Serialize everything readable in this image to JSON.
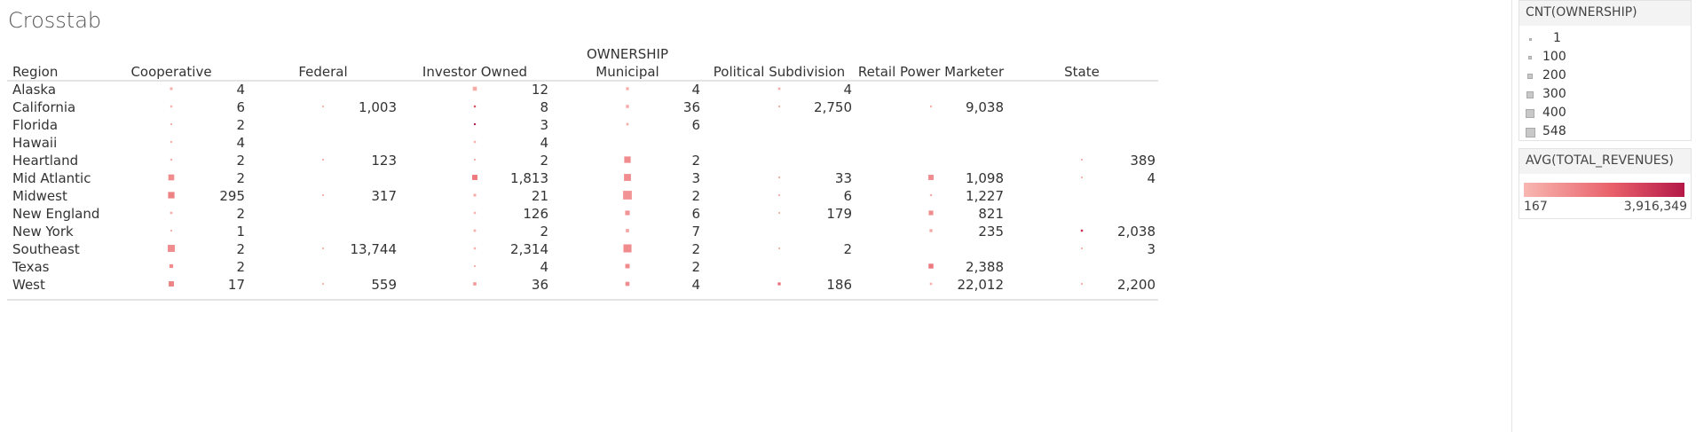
{
  "title": "Crosstab",
  "chart_data": {
    "type": "table",
    "column_group_header": "OWNERSHIP",
    "row_header": "Region",
    "columns": [
      "Cooperative",
      "Federal",
      "Investor Owned",
      "Municipal",
      "Political Subdivision",
      "Retail Power Marketer",
      "State"
    ],
    "rows": [
      {
        "region": "Alaska",
        "cells": [
          4,
          null,
          12,
          4,
          4,
          null,
          null
        ]
      },
      {
        "region": "California",
        "cells": [
          6,
          1003,
          8,
          36,
          2750,
          9038,
          null
        ]
      },
      {
        "region": "Florida",
        "cells": [
          2,
          null,
          3,
          6,
          null,
          null,
          null
        ]
      },
      {
        "region": "Hawaii",
        "cells": [
          4,
          null,
          4,
          null,
          null,
          null,
          null
        ]
      },
      {
        "region": "Heartland",
        "cells": [
          2,
          123,
          2,
          2,
          null,
          null,
          389
        ]
      },
      {
        "region": "Mid Atlantic",
        "cells": [
          2,
          null,
          1813,
          3,
          33,
          1098,
          4
        ]
      },
      {
        "region": "Midwest",
        "cells": [
          295,
          317,
          21,
          2,
          6,
          1227,
          null
        ]
      },
      {
        "region": "New England",
        "cells": [
          2,
          null,
          126,
          6,
          179,
          821,
          null
        ]
      },
      {
        "region": "New York",
        "cells": [
          1,
          null,
          2,
          7,
          null,
          235,
          2038
        ]
      },
      {
        "region": "Southeast",
        "cells": [
          2,
          13744,
          2314,
          2,
          2,
          null,
          3
        ]
      },
      {
        "region": "Texas",
        "cells": [
          2,
          null,
          4,
          2,
          null,
          2388,
          null
        ]
      },
      {
        "region": "West",
        "cells": [
          17,
          559,
          36,
          4,
          186,
          22012,
          2200
        ]
      }
    ],
    "marks": [
      [
        [
          50,
          0.05
        ],
        null,
        [
          120,
          0.06
        ],
        [
          60,
          0.05
        ],
        [
          40,
          0.05
        ],
        null,
        null
      ],
      [
        [
          30,
          0.05
        ],
        [
          20,
          0.02
        ],
        [
          30,
          0.6
        ],
        [
          70,
          0.07
        ],
        [
          20,
          0.05
        ],
        [
          25,
          0.06
        ],
        null
      ],
      [
        [
          20,
          0.03
        ],
        null,
        [
          25,
          0.95
        ],
        [
          40,
          0.05
        ],
        null,
        null,
        null
      ],
      [
        [
          25,
          0.05
        ],
        null,
        [
          30,
          0.05
        ],
        null,
        null,
        null,
        null
      ],
      [
        [
          30,
          0.03
        ],
        [
          20,
          0.02
        ],
        [
          20,
          0.04
        ],
        [
          300,
          0.25
        ],
        null,
        null,
        [
          10,
          0.02
        ]
      ],
      [
        [
          250,
          0.25
        ],
        null,
        [
          200,
          0.35
        ],
        [
          350,
          0.25
        ],
        [
          20,
          0.05
        ],
        [
          200,
          0.25
        ],
        [
          20,
          0.02
        ]
      ],
      [
        [
          300,
          0.3
        ],
        [
          20,
          0.02
        ],
        [
          50,
          0.08
        ],
        [
          548,
          0.2
        ],
        [
          20,
          0.02
        ],
        [
          30,
          0.05
        ],
        null
      ],
      [
        [
          40,
          0.05
        ],
        null,
        [
          30,
          0.05
        ],
        [
          150,
          0.2
        ],
        [
          20,
          0.02
        ],
        [
          150,
          0.25
        ],
        null
      ],
      [
        [
          20,
          0.02
        ],
        null,
        [
          40,
          0.05
        ],
        [
          80,
          0.1
        ],
        null,
        [
          60,
          0.1
        ],
        [
          35,
          0.8
        ]
      ],
      [
        [
          360,
          0.25
        ],
        [
          15,
          0.02
        ],
        [
          30,
          0.05
        ],
        [
          470,
          0.25
        ],
        [
          15,
          0.02
        ],
        null,
        [
          20,
          0.02
        ]
      ],
      [
        [
          100,
          0.25
        ],
        null,
        [
          20,
          0.02
        ],
        [
          140,
          0.25
        ],
        null,
        [
          170,
          0.35
        ],
        null
      ],
      [
        [
          200,
          0.3
        ],
        [
          20,
          0.02
        ],
        [
          70,
          0.2
        ],
        [
          120,
          0.25
        ],
        [
          60,
          0.4
        ],
        [
          40,
          0.03
        ],
        [
          25,
          0.02
        ]
      ]
    ]
  },
  "legends": {
    "size": {
      "title": "CNT(OWNERSHIP)",
      "items": [
        {
          "label": "1",
          "value": 1
        },
        {
          "label": "100",
          "value": 100
        },
        {
          "label": "200",
          "value": 200
        },
        {
          "label": "300",
          "value": 300
        },
        {
          "label": "400",
          "value": 400
        },
        {
          "label": "548",
          "value": 548
        }
      ]
    },
    "color": {
      "title": "AVG(TOTAL_REVENUES)",
      "min_label": "167",
      "max_label": "3,916,349",
      "colors": [
        "#f8b7b1",
        "#e8606a",
        "#b41848"
      ]
    }
  }
}
